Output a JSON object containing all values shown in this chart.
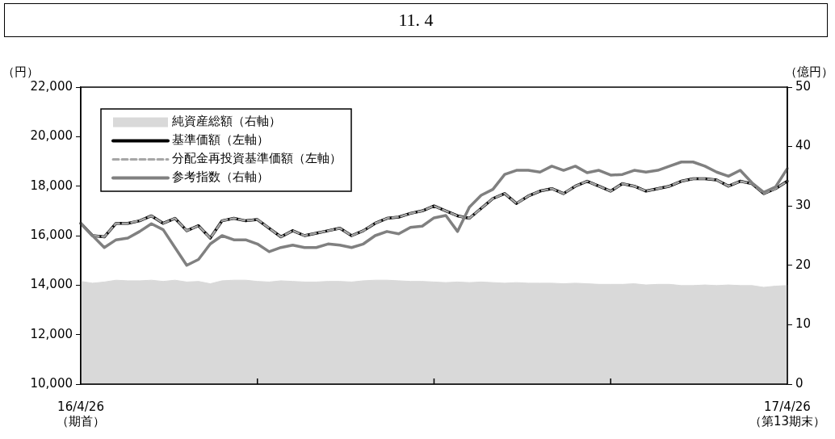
{
  "chart_data": {
    "type": "line",
    "title": "11. 4",
    "ylabel": "（円）",
    "y2label": "（億円）",
    "categories": [
      "16/4/26\n（期首）",
      null,
      null,
      null,
      null,
      null,
      null,
      null,
      null,
      null,
      null,
      null,
      null,
      null,
      null,
      null,
      null,
      null,
      null,
      null,
      null,
      null,
      null,
      null,
      null,
      null,
      null,
      null,
      null,
      null,
      null,
      null,
      null,
      null,
      null,
      null,
      null,
      null,
      null,
      null,
      null,
      null,
      null,
      null,
      null,
      null,
      null,
      null,
      null,
      null,
      null,
      null,
      null,
      null,
      null,
      null,
      null,
      null,
      null,
      null,
      "17/4/26\n（第13期末）"
    ],
    "series": [
      {
        "name": "純資産総額（右軸）",
        "type": "area",
        "axis": "y2",
        "color": "#d9d9d9",
        "values": [
          17.3,
          17.0,
          17.2,
          17.5,
          17.4,
          17.4,
          17.5,
          17.3,
          17.5,
          17.2,
          17.3,
          16.9,
          17.4,
          17.5,
          17.5,
          17.3,
          17.2,
          17.4,
          17.3,
          17.2,
          17.2,
          17.3,
          17.3,
          17.2,
          17.4,
          17.5,
          17.5,
          17.4,
          17.3,
          17.3,
          17.2,
          17.1,
          17.2,
          17.1,
          17.2,
          17.1,
          17.0,
          17.1,
          17.0,
          17.0,
          17.0,
          16.9,
          17.0,
          16.9,
          16.8,
          16.8,
          16.8,
          16.9,
          16.7,
          16.8,
          16.8,
          16.6,
          16.6,
          16.7,
          16.6,
          16.7,
          16.6,
          16.6,
          16.3,
          16.5,
          16.6
        ]
      },
      {
        "name": "基準価額（左軸）",
        "axis": "y",
        "color": "#000000",
        "line_style": "solid",
        "values": [
          16500,
          16000,
          15950,
          16500,
          16500,
          16600,
          16800,
          16500,
          16700,
          16200,
          16400,
          15900,
          16600,
          16700,
          16600,
          16650,
          16300,
          15950,
          16200,
          16000,
          16100,
          16200,
          16300,
          16000,
          16200,
          16500,
          16700,
          16750,
          16900,
          17000,
          17200,
          17000,
          16800,
          16700,
          17100,
          17500,
          17700,
          17300,
          17600,
          17800,
          17900,
          17700,
          18000,
          18200,
          18000,
          17800,
          18100,
          18000,
          17800,
          17900,
          18000,
          18200,
          18300,
          18300,
          18250,
          18000,
          18200,
          18100,
          17700,
          17900,
          18200
        ]
      },
      {
        "name": "分配金再投資基準価額（左軸）",
        "axis": "y",
        "color": "#a6a6a6",
        "line_style": "dashed",
        "values": [
          16500,
          16000,
          15950,
          16500,
          16500,
          16600,
          16800,
          16500,
          16700,
          16200,
          16400,
          15900,
          16600,
          16700,
          16600,
          16650,
          16300,
          15950,
          16200,
          16000,
          16100,
          16200,
          16300,
          16000,
          16200,
          16500,
          16700,
          16750,
          16900,
          17000,
          17200,
          17000,
          16800,
          16700,
          17100,
          17500,
          17700,
          17300,
          17600,
          17800,
          17900,
          17700,
          18000,
          18200,
          18000,
          17800,
          18100,
          18000,
          17800,
          17900,
          18000,
          18200,
          18300,
          18300,
          18250,
          18000,
          18200,
          18100,
          17700,
          17900,
          18200
        ]
      },
      {
        "name": "参考指数（右軸）",
        "axis": "y2",
        "color": "#808080",
        "line_style": "solid",
        "values": [
          27.0,
          25.0,
          23.0,
          24.3,
          24.6,
          25.7,
          27.0,
          26.0,
          23.0,
          20.0,
          21.0,
          23.6,
          25.0,
          24.3,
          24.3,
          23.6,
          22.3,
          23.0,
          23.4,
          23.0,
          23.0,
          23.6,
          23.4,
          23.0,
          23.6,
          25.0,
          25.7,
          25.3,
          26.4,
          26.6,
          28.0,
          28.4,
          25.7,
          29.8,
          31.8,
          32.8,
          35.3,
          36.0,
          36.0,
          35.7,
          36.7,
          36.0,
          36.7,
          35.6,
          36.0,
          35.2,
          35.3,
          36.0,
          35.7,
          36.0,
          36.7,
          37.4,
          37.4,
          36.7,
          35.7,
          35.0,
          36.0,
          33.9,
          32.3,
          33.2,
          36.3
        ]
      }
    ],
    "ylim": [
      10000,
      22000
    ],
    "yticks": [
      {
        "value": 10000,
        "label": "10,000"
      },
      {
        "value": 12000,
        "label": "12,000"
      },
      {
        "value": 14000,
        "label": "14,000"
      },
      {
        "value": 16000,
        "label": "16,000"
      },
      {
        "value": 18000,
        "label": "18,000"
      },
      {
        "value": 20000,
        "label": "20,000"
      },
      {
        "value": 22000,
        "label": "22,000"
      }
    ],
    "y2lim": [
      0,
      50
    ],
    "y2ticks": [
      0,
      10,
      20,
      30,
      40,
      50
    ],
    "grid": false,
    "legend": "top left",
    "marker": "none"
  }
}
